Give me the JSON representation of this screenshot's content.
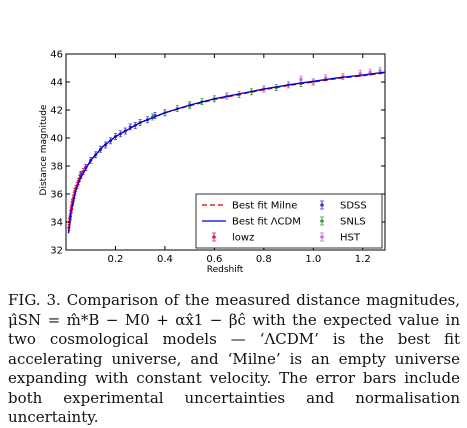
{
  "chart_data": {
    "type": "scatter",
    "xlabel": "Redshift",
    "ylabel": "Distance magnitude",
    "xlim": [
      0.0,
      1.29
    ],
    "ylim": [
      32,
      46
    ],
    "xticks": [
      0.2,
      0.4,
      0.6,
      0.8,
      1.0,
      1.2
    ],
    "xtick_labels": [
      "0.2",
      "0.4",
      "0.6",
      "0.8",
      "1.0",
      "1.2"
    ],
    "yticks": [
      32,
      34,
      36,
      38,
      40,
      42,
      44,
      46
    ],
    "ytick_labels": [
      "32",
      "34",
      "36",
      "38",
      "40",
      "42",
      "44",
      "46"
    ],
    "grid": false,
    "legend_position": "lower-right",
    "legend_column_1": [
      "Best fit Milne",
      "Best fit ΛCDM",
      "lowz"
    ],
    "legend_column_2": [
      "SDSS",
      "SNLS",
      "HST"
    ],
    "series": [
      {
        "name": "Best fit Milne",
        "style": "dashed-line",
        "color": "#cc0000",
        "x": [
          0.01,
          0.02,
          0.04,
          0.06,
          0.1,
          0.15,
          0.2,
          0.3,
          0.4,
          0.5,
          0.6,
          0.7,
          0.8,
          0.9,
          1.0,
          1.1,
          1.2,
          1.29
        ],
        "y": [
          33.2,
          34.7,
          36.3,
          37.2,
          38.4,
          39.4,
          40.1,
          41.1,
          41.8,
          42.3,
          42.75,
          43.1,
          43.45,
          43.75,
          44.0,
          44.25,
          44.45,
          44.65
        ]
      },
      {
        "name": "Best fit ΛCDM",
        "style": "solid-line",
        "color": "#0000cc",
        "x": [
          0.01,
          0.02,
          0.04,
          0.06,
          0.1,
          0.15,
          0.2,
          0.3,
          0.4,
          0.5,
          0.6,
          0.7,
          0.8,
          0.9,
          1.0,
          1.1,
          1.2,
          1.29
        ],
        "y": [
          33.2,
          34.7,
          36.3,
          37.2,
          38.4,
          39.4,
          40.1,
          41.1,
          41.8,
          42.35,
          42.8,
          43.15,
          43.5,
          43.8,
          44.05,
          44.3,
          44.5,
          44.7
        ]
      },
      {
        "name": "lowz",
        "color": "#e8174f",
        "x": [
          0.012,
          0.014,
          0.016,
          0.018,
          0.02,
          0.022,
          0.024,
          0.026,
          0.028,
          0.03,
          0.033,
          0.036,
          0.04,
          0.045,
          0.05,
          0.055,
          0.06,
          0.07,
          0.08
        ],
        "y": [
          33.6,
          34.0,
          34.3,
          34.4,
          34.8,
          34.9,
          35.2,
          35.4,
          35.5,
          35.7,
          35.9,
          36.2,
          36.4,
          36.6,
          36.9,
          37.1,
          37.3,
          37.6,
          37.9
        ]
      },
      {
        "name": "SDSS",
        "color": "#3a3ad8",
        "x": [
          0.06,
          0.08,
          0.1,
          0.12,
          0.14,
          0.16,
          0.18,
          0.2,
          0.22,
          0.24,
          0.26,
          0.28,
          0.3,
          0.33,
          0.36,
          0.4
        ],
        "y": [
          37.4,
          37.9,
          38.4,
          38.8,
          39.2,
          39.5,
          39.8,
          40.1,
          40.3,
          40.5,
          40.8,
          40.9,
          41.1,
          41.3,
          41.6,
          41.8
        ]
      },
      {
        "name": "SNLS",
        "color": "#3a9a3a",
        "x": [
          0.3,
          0.35,
          0.4,
          0.45,
          0.5,
          0.55,
          0.6,
          0.65,
          0.7,
          0.75,
          0.8,
          0.85,
          0.9,
          0.95,
          1.0
        ],
        "y": [
          41.1,
          41.5,
          41.8,
          42.1,
          42.3,
          42.6,
          42.8,
          43.0,
          43.1,
          43.3,
          43.5,
          43.6,
          43.8,
          43.9,
          44.0
        ]
      },
      {
        "name": "HST",
        "color": "#c56ad6",
        "x": [
          0.5,
          0.65,
          0.8,
          0.9,
          0.95,
          1.0,
          1.05,
          1.12,
          1.19,
          1.23,
          1.27
        ],
        "y": [
          42.4,
          43.0,
          43.5,
          43.8,
          44.2,
          44.0,
          44.3,
          44.4,
          44.6,
          44.7,
          44.8
        ]
      }
    ]
  },
  "caption": {
    "text": "FIG. 3. Comparison of the measured distance magnitudes, μ̂SN = m̂*B − M0 + αx̂1 − βĉ with the expected value in two cosmological models — ‘ΛCDM’ is the best fit accelerating universe, and ‘Milne’ is an empty universe expanding with constant velocity. The error bars include both experimental uncertainties and normalisation uncertainty."
  }
}
